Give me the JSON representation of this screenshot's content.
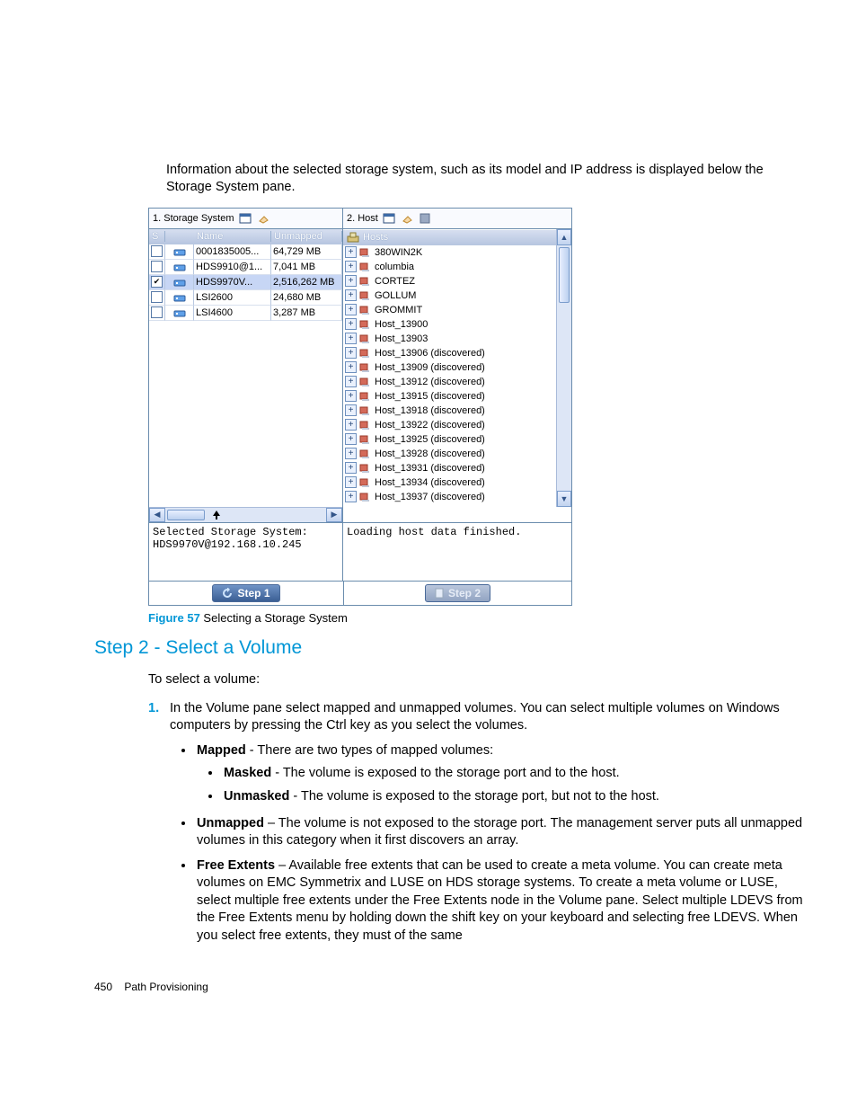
{
  "introText": "Information about the selected storage system, such as its model and IP address is displayed below the Storage System pane.",
  "screenshot": {
    "leftPane": {
      "title": "1. Storage System",
      "columns": {
        "s": "S",
        "icon": "",
        "name": "Name",
        "unmapped": "Unmapped"
      },
      "rows": [
        {
          "checked": false,
          "name": "0001835005...",
          "unmapped": "64,729 MB"
        },
        {
          "checked": false,
          "name": "HDS9910@1...",
          "unmapped": "7,041 MB"
        },
        {
          "checked": true,
          "name": "HDS9970V...",
          "unmapped": "2,516,262 MB",
          "selected": true
        },
        {
          "checked": false,
          "name": "LSI2600",
          "unmapped": "24,680 MB"
        },
        {
          "checked": false,
          "name": "LSI4600",
          "unmapped": "3,287 MB"
        }
      ],
      "statusLine1": "Selected Storage System:",
      "statusLine2": "HDS9970V@192.168.10.245",
      "stepLabel": "Step 1"
    },
    "rightPane": {
      "title": "2. Host",
      "header": "Hosts",
      "hosts": [
        {
          "label": "380WIN2K",
          "suffix": ""
        },
        {
          "label": "columbia",
          "suffix": ""
        },
        {
          "label": "CORTEZ",
          "suffix": ""
        },
        {
          "label": "GOLLUM",
          "suffix": ""
        },
        {
          "label": "GROMMIT",
          "suffix": ""
        },
        {
          "label": "Host_13900",
          "suffix": ""
        },
        {
          "label": "Host_13903",
          "suffix": ""
        },
        {
          "label": "Host_13906",
          "suffix": " (discovered)"
        },
        {
          "label": "Host_13909",
          "suffix": " (discovered)"
        },
        {
          "label": "Host_13912",
          "suffix": " (discovered)"
        },
        {
          "label": "Host_13915",
          "suffix": " (discovered)"
        },
        {
          "label": "Host_13918",
          "suffix": " (discovered)"
        },
        {
          "label": "Host_13922",
          "suffix": " (discovered)"
        },
        {
          "label": "Host_13925",
          "suffix": " (discovered)"
        },
        {
          "label": "Host_13928",
          "suffix": " (discovered)"
        },
        {
          "label": "Host_13931",
          "suffix": " (discovered)"
        },
        {
          "label": "Host_13934",
          "suffix": " (discovered)"
        },
        {
          "label": "Host_13937",
          "suffix": " (discovered)"
        }
      ],
      "status": "Loading host data finished.",
      "stepLabel": "Step 2"
    }
  },
  "figure": {
    "label": "Figure 57",
    "caption": "Selecting a Storage System"
  },
  "heading": "Step 2 - Select a Volume",
  "lead": "To select a volume:",
  "step1": "In the Volume pane select mapped and unmapped volumes. You can select multiple volumes on Windows computers by pressing the Ctrl key as you select the volumes.",
  "bullets": {
    "mappedLabel": "Mapped",
    "mappedText": " - There are two types of mapped volumes:",
    "maskedLabel": "Masked",
    "maskedText": " - The volume is exposed to the storage port and to the host.",
    "unmaskedLabel": "Unmasked",
    "unmaskedText": " - The volume is exposed to the storage port, but not to the host.",
    "unmappedLabel": "Unmapped",
    "unmappedText": " – The volume is not exposed to the storage port. The management server puts all unmapped volumes in this category when it first discovers an array.",
    "freeLabel": "Free Extents",
    "freeText": " – Available free extents that can be used to create a meta volume. You can create meta volumes on EMC Symmetrix and LUSE on HDS storage systems. To create a meta volume or LUSE, select multiple free extents under the Free Extents node in the Volume pane. Select multiple LDEVS from the Free Extents menu by holding down the shift key on your keyboard and selecting free LDEVS. When you select free extents, they must of the same"
  },
  "footer": {
    "page": "450",
    "section": "Path Provisioning"
  },
  "colors": {
    "accent": "#0096d6",
    "panelBorder": "#6a8cad",
    "headerGradTop": "#d7dff0",
    "headerGradBottom": "#b6c5e0",
    "selectedRow": "#c7d6f5"
  }
}
